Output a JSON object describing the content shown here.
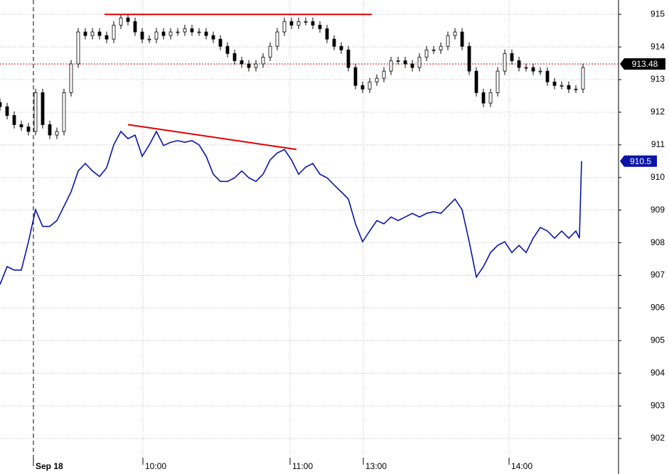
{
  "chart_data": {
    "type": "candlestick",
    "xlim": [
      0,
      870
    ],
    "ylim": [
      901.5,
      915.44
    ],
    "yticks": [
      902,
      903,
      904,
      905,
      906,
      907,
      908,
      909,
      910,
      911,
      912,
      913,
      914,
      915
    ],
    "xticks": [
      {
        "value": 47,
        "label": "Sep 18"
      },
      {
        "value": 201,
        "label": "10:00"
      },
      {
        "value": 408,
        "label": "11:00"
      },
      {
        "value": 511,
        "label": "13:00"
      },
      {
        "value": 716,
        "label": "14:00"
      }
    ],
    "grid": true,
    "series": [
      {
        "type": "candlestick",
        "color": "#000000",
        "last_label": 913.48,
        "x": [
          0,
          10,
          20,
          30,
          40,
          50,
          60,
          70,
          80,
          90,
          100,
          110,
          120,
          130,
          140,
          150,
          160,
          170,
          180,
          190,
          200,
          210,
          220,
          230,
          240,
          250,
          260,
          270,
          280,
          290,
          300,
          310,
          320,
          330,
          340,
          350,
          360,
          370,
          380,
          390,
          400,
          410,
          420,
          430,
          440,
          450,
          460,
          470,
          480,
          490,
          500,
          510,
          520,
          530,
          540,
          550,
          560,
          570,
          580,
          590,
          600,
          610,
          620,
          630,
          640,
          650,
          660,
          670,
          680,
          690,
          700,
          710,
          720,
          730,
          740,
          750,
          760,
          770,
          780,
          790,
          800,
          810,
          820
        ],
        "open": [
          912.3,
          912.17,
          911.9,
          911.62,
          911.55,
          911.41,
          912.6,
          911.62,
          911.3,
          911.41,
          912.6,
          913.48,
          914.46,
          914.35,
          914.46,
          914.35,
          914.24,
          914.67,
          914.89,
          914.78,
          914.46,
          914.24,
          914.24,
          914.46,
          914.35,
          914.46,
          914.46,
          914.56,
          914.46,
          914.46,
          914.35,
          914.24,
          914.02,
          913.8,
          913.58,
          913.48,
          913.37,
          913.48,
          913.69,
          914.02,
          914.46,
          914.78,
          914.67,
          914.78,
          914.78,
          914.67,
          914.56,
          914.24,
          914.02,
          913.91,
          913.37,
          912.82,
          912.71,
          912.93,
          913.04,
          913.26,
          913.58,
          913.58,
          913.48,
          913.37,
          913.69,
          913.91,
          913.91,
          914.02,
          914.35,
          914.46,
          914.02,
          913.26,
          912.6,
          912.28,
          912.6,
          913.26,
          913.8,
          913.58,
          913.37,
          913.37,
          913.26,
          913.26,
          912.93,
          912.82,
          912.82,
          912.71,
          912.71
        ],
        "high": [
          912.42,
          912.29,
          912.02,
          911.74,
          911.67,
          912.72,
          912.72,
          911.74,
          911.53,
          912.72,
          913.6,
          914.58,
          914.58,
          914.58,
          914.58,
          914.47,
          914.79,
          915.01,
          915.01,
          914.9,
          914.58,
          914.36,
          914.58,
          914.58,
          914.58,
          914.58,
          914.68,
          914.68,
          914.58,
          914.58,
          914.47,
          914.36,
          914.14,
          913.92,
          913.7,
          913.6,
          913.6,
          913.81,
          914.14,
          914.58,
          914.9,
          914.9,
          914.9,
          914.9,
          914.9,
          914.79,
          914.68,
          914.36,
          914.14,
          914.03,
          913.49,
          912.94,
          913.05,
          913.16,
          913.38,
          913.7,
          913.7,
          913.7,
          913.6,
          913.81,
          914.03,
          914.03,
          914.14,
          914.47,
          914.58,
          914.58,
          914.14,
          913.38,
          912.72,
          912.72,
          913.38,
          913.92,
          913.92,
          913.7,
          913.49,
          913.49,
          913.38,
          913.38,
          913.05,
          912.94,
          912.94,
          912.83,
          913.49
        ],
        "low": [
          912.05,
          911.78,
          911.5,
          911.43,
          911.29,
          911.29,
          911.5,
          911.18,
          911.18,
          911.29,
          912.48,
          913.36,
          914.23,
          914.23,
          914.23,
          914.12,
          914.12,
          914.55,
          914.66,
          914.34,
          914.12,
          914.12,
          914.12,
          914.23,
          914.23,
          914.34,
          914.34,
          914.34,
          914.34,
          914.23,
          914.12,
          913.9,
          913.68,
          913.46,
          913.36,
          913.25,
          913.25,
          913.36,
          913.57,
          913.9,
          914.34,
          914.55,
          914.55,
          914.66,
          914.55,
          914.44,
          914.12,
          913.9,
          913.79,
          913.25,
          912.7,
          912.59,
          912.59,
          912.81,
          912.92,
          913.14,
          913.46,
          913.36,
          913.25,
          913.25,
          913.57,
          913.79,
          913.79,
          913.9,
          914.23,
          913.9,
          913.14,
          912.48,
          912.16,
          912.16,
          912.48,
          913.14,
          913.46,
          913.25,
          913.25,
          913.14,
          913.14,
          912.81,
          912.7,
          912.7,
          912.59,
          912.59,
          912.59
        ],
        "close": [
          912.17,
          911.9,
          911.62,
          911.55,
          911.41,
          912.6,
          911.62,
          911.3,
          911.41,
          912.6,
          913.48,
          914.46,
          914.35,
          914.46,
          914.35,
          914.24,
          914.67,
          914.89,
          914.78,
          914.46,
          914.24,
          914.24,
          914.46,
          914.35,
          914.46,
          914.46,
          914.56,
          914.46,
          914.46,
          914.35,
          914.24,
          914.02,
          913.8,
          913.58,
          913.48,
          913.37,
          913.48,
          913.69,
          914.02,
          914.46,
          914.78,
          914.67,
          914.78,
          914.78,
          914.67,
          914.56,
          914.24,
          914.02,
          913.91,
          913.37,
          912.82,
          912.71,
          912.93,
          913.04,
          913.26,
          913.58,
          913.58,
          913.48,
          913.37,
          913.69,
          913.91,
          913.91,
          914.02,
          914.35,
          914.46,
          914.02,
          913.26,
          912.6,
          912.28,
          912.6,
          913.26,
          913.8,
          913.58,
          913.37,
          913.37,
          913.26,
          913.26,
          912.93,
          912.82,
          912.82,
          912.71,
          912.71,
          913.37
        ]
      },
      {
        "type": "line",
        "color": "#0a14a8",
        "last_label": 910.5,
        "x": [
          0,
          10,
          20,
          30,
          40,
          50,
          60,
          70,
          80,
          90,
          100,
          110,
          120,
          130,
          140,
          150,
          160,
          170,
          180,
          190,
          200,
          210,
          220,
          230,
          240,
          250,
          260,
          270,
          280,
          290,
          300,
          310,
          320,
          330,
          340,
          350,
          360,
          370,
          380,
          390,
          400,
          410,
          420,
          430,
          440,
          450,
          460,
          470,
          480,
          490,
          500,
          510,
          520,
          530,
          540,
          550,
          560,
          570,
          580,
          590,
          600,
          610,
          620,
          630,
          640,
          650,
          660,
          670,
          680,
          690,
          700,
          710,
          720,
          730,
          740,
          750,
          760,
          770,
          780,
          790,
          800,
          810,
          815,
          818
        ],
        "values": [
          906.72,
          907.27,
          907.16,
          907.16,
          908.03,
          909.01,
          908.5,
          908.5,
          908.68,
          909.12,
          909.56,
          910.2,
          910.43,
          910.2,
          910.03,
          910.3,
          911.0,
          911.41,
          911.19,
          911.3,
          910.65,
          911.0,
          911.41,
          910.98,
          911.08,
          911.13,
          911.08,
          911.13,
          911.0,
          910.65,
          910.1,
          909.88,
          909.88,
          909.99,
          910.2,
          909.99,
          909.88,
          910.1,
          910.54,
          910.75,
          910.86,
          910.54,
          910.1,
          910.32,
          910.43,
          910.1,
          909.99,
          909.77,
          909.56,
          909.34,
          908.58,
          908.03,
          908.36,
          908.68,
          908.58,
          908.79,
          908.68,
          908.79,
          908.9,
          908.79,
          908.9,
          908.95,
          908.9,
          909.12,
          909.34,
          909.01,
          908.03,
          906.95,
          907.27,
          907.7,
          907.92,
          908.03,
          907.7,
          907.92,
          907.7,
          908.14,
          908.47,
          908.36,
          908.14,
          908.36,
          908.14,
          908.36,
          908.14,
          910.5
        ]
      }
    ],
    "trendlines": [
      {
        "color": "#e00000",
        "x": [
          147,
          523
        ],
        "values": [
          915,
          915
        ]
      },
      {
        "color": "#e00000",
        "x": [
          180,
          417
        ],
        "values": [
          911.62,
          910.86
        ]
      }
    ]
  }
}
